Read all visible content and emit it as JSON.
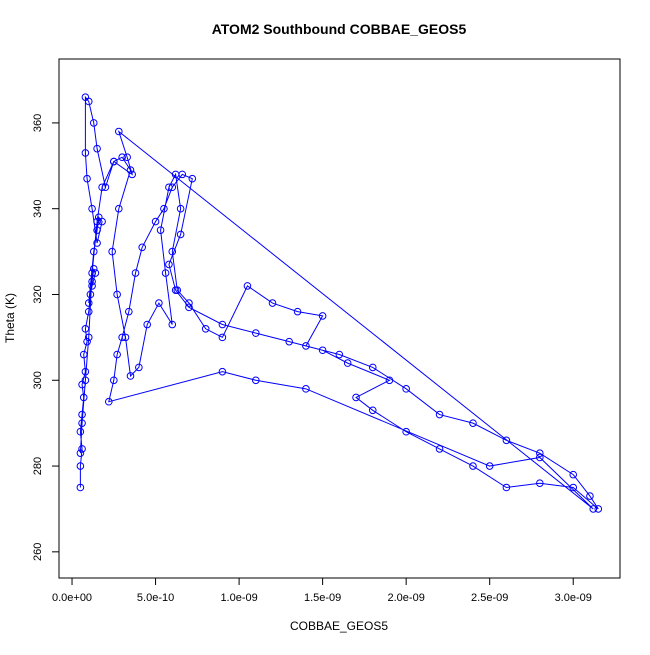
{
  "chart_data": {
    "type": "line",
    "title": "ATOM2 Southbound COBBAE_GEOS5",
    "x_label": "COBBAE_GEOS5",
    "y_label": "Theta (K)",
    "x": [
      5e-11,
      5e-11,
      6e-11,
      5e-11,
      6e-11,
      7e-11,
      6e-11,
      8e-11,
      7e-11,
      9e-11,
      8e-11,
      1e-10,
      1.1e-10,
      1.2e-10,
      1.3e-10,
      1.4e-10,
      1.2e-10,
      1e-10,
      1.3e-10,
      1.5e-10,
      1.6e-10,
      1.8e-10,
      1.5e-10,
      1.2e-10,
      9e-11,
      8e-11,
      8e-11,
      1e-10,
      1.3e-10,
      1.5e-10,
      2e-10,
      2.5e-10,
      3e-10,
      3.5e-10,
      2.8e-10,
      2.4e-10,
      2.7e-10,
      3.2e-10,
      3.5e-10,
      4e-10,
      4.5e-10,
      5.2e-10,
      6e-10,
      5.6e-10,
      5.3e-10,
      5.8e-10,
      6.2e-10,
      6.5e-10,
      6e-10,
      6.3e-10,
      7e-10,
      8e-10,
      9e-10,
      1.05e-09,
      1.2e-09,
      1.35e-09,
      1.5e-09,
      1.4e-09,
      1.6e-09,
      1.8e-09,
      2e-09,
      2.2e-09,
      2.4e-09,
      2.6e-09,
      2.8e-09,
      3e-09,
      3.1e-09,
      3.15e-09,
      3e-09,
      2.8e-09,
      2.6e-09,
      2.4e-09,
      2.2e-09,
      2e-09,
      1.8e-09,
      1.7e-09,
      1.9e-09,
      1.65e-09,
      1.5e-09,
      1.3e-09,
      1.1e-09,
      9e-10,
      7e-10,
      6.2e-10,
      5.8e-10,
      6.5e-10,
      7.2e-10,
      6.6e-10,
      6e-10,
      5.5e-10,
      5e-10,
      4.2e-10,
      3.8e-10,
      3.4e-10,
      3e-10,
      2.7e-10,
      2.5e-10,
      2.2e-10,
      9e-10,
      1.1e-09,
      1.4e-09,
      2.5e-09,
      2.8e-09,
      3.12e-09,
      2.8e-10,
      3.3e-10,
      3.6e-10,
      2.5e-10,
      1.8e-10,
      1.5e-10,
      1.2e-10,
      1e-10,
      8e-11,
      6e-11,
      5e-11
    ],
    "series": [
      {
        "color": "#0000ff",
        "values": [
          275,
          280,
          284,
          288,
          292,
          296,
          299,
          302,
          306,
          309,
          312,
          316,
          320,
          323,
          326,
          325,
          322,
          318,
          330,
          335,
          338,
          337,
          332,
          340,
          347,
          353,
          366,
          365,
          360,
          354,
          345,
          351,
          352,
          349,
          340,
          330,
          320,
          310,
          301,
          303,
          313,
          318,
          313,
          325,
          335,
          345,
          348,
          340,
          330,
          321,
          318,
          312,
          310,
          322,
          318,
          316,
          315,
          308,
          306,
          303,
          298,
          292,
          290,
          286,
          283,
          278,
          273,
          270,
          275,
          276,
          275,
          280,
          284,
          288,
          293,
          296,
          300,
          304,
          307,
          309,
          311,
          313,
          317,
          321,
          327,
          334,
          347,
          348,
          345,
          340,
          337,
          331,
          325,
          316,
          310,
          306,
          300,
          295,
          302,
          300,
          298,
          280,
          282,
          270,
          358,
          352,
          348,
          351,
          345,
          337,
          325,
          310,
          300,
          290,
          283
        ]
      }
    ],
    "xlim": [
      -7.8e-11,
      3.28e-09
    ],
    "xticks": [
      {
        "value": 0,
        "label": "0.0e+00"
      },
      {
        "value": 5e-10,
        "label": "5.0e-10"
      },
      {
        "value": 1e-09,
        "label": "1.0e-09"
      },
      {
        "value": 1.5e-09,
        "label": "1.5e-09"
      },
      {
        "value": 2e-09,
        "label": "2.0e-09"
      },
      {
        "value": 2.5e-09,
        "label": "2.5e-09"
      },
      {
        "value": 3e-09,
        "label": "3.0e-09"
      }
    ],
    "ylim": [
      253.9,
      374.9
    ],
    "yticks": [
      260,
      280,
      300,
      320,
      340,
      360
    ]
  }
}
